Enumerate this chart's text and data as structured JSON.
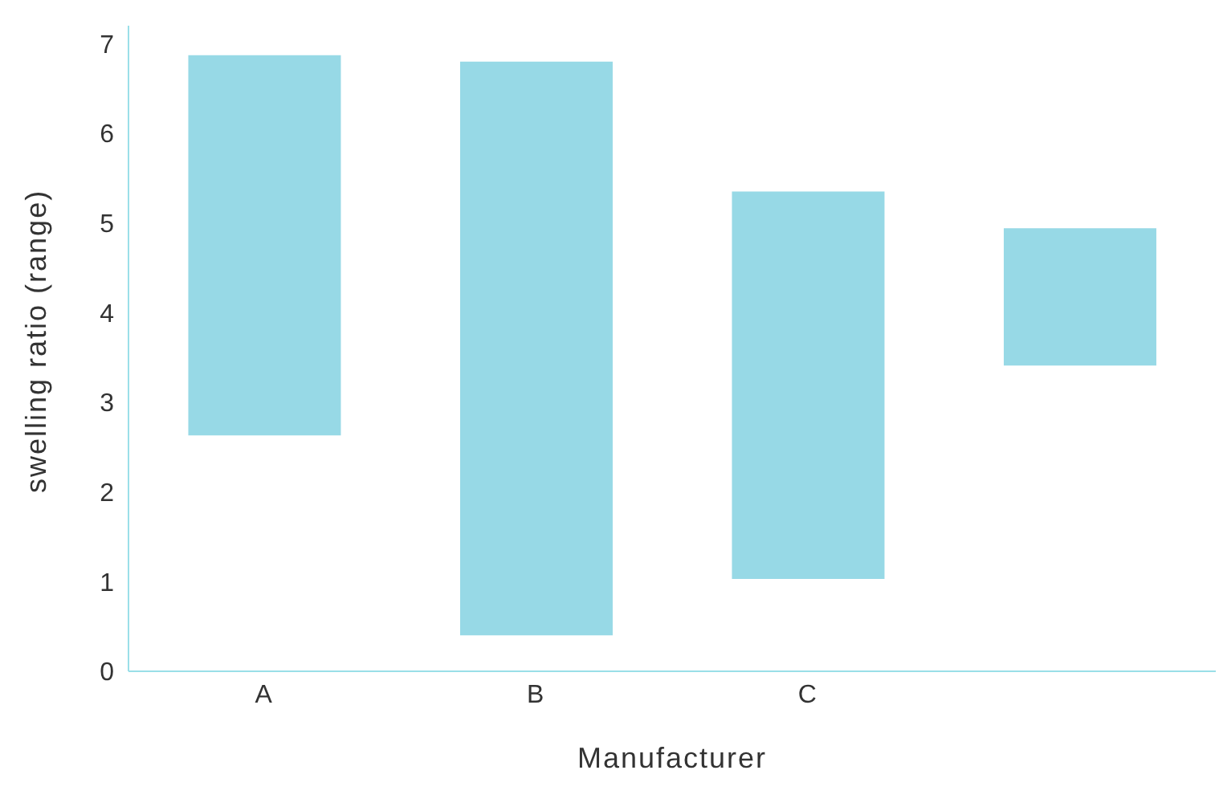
{
  "chart_data": {
    "type": "bar",
    "xlabel": "Manufacturer",
    "ylabel": "swelling ratio (range)",
    "categories": [
      "A",
      "B",
      "C",
      null
    ],
    "base": [
      2.63,
      0.4,
      1.03,
      3.41
    ],
    "values": [
      4.24,
      6.4,
      4.32,
      1.53
    ],
    "color": "#97d9e6",
    "ylim": [
      0,
      7.2
    ],
    "yticks": [
      0,
      1,
      2,
      3,
      4,
      5,
      6,
      7
    ],
    "grid": false,
    "legend": false
  }
}
